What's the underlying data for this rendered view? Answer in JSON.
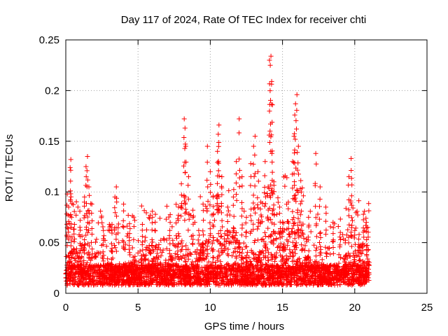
{
  "chart_data": {
    "type": "scatter",
    "title": "Day 117 of 2024, Rate Of TEC Index for receiver chti",
    "xlabel": "GPS time / hours",
    "ylabel": "ROTI / TECUs",
    "xlim": [
      0,
      25
    ],
    "ylim": [
      0,
      0.25
    ],
    "xticks": [
      0,
      5,
      10,
      15,
      20,
      25
    ],
    "xtick_labels": [
      "0",
      "5",
      "10",
      "15",
      "20",
      "25"
    ],
    "yticks": [
      0,
      0.05,
      0.1,
      0.15,
      0.2,
      0.25
    ],
    "ytick_labels": [
      "0",
      "0.05",
      "0.1",
      "0.15",
      "0.2",
      "0.25"
    ],
    "grid": true,
    "marker": "+",
    "color": "#ff0000",
    "data_extent_hours": [
      0,
      21
    ],
    "series": [
      {
        "name": "ROTI",
        "points": [
          [
            0.1,
            0.098
          ],
          [
            0.2,
            0.085
          ],
          [
            0.3,
            0.124
          ],
          [
            0.35,
            0.132
          ],
          [
            0.4,
            0.075
          ],
          [
            0.6,
            0.068
          ],
          [
            1.0,
            0.072
          ],
          [
            1.3,
            0.095
          ],
          [
            1.4,
            0.125
          ],
          [
            1.5,
            0.135
          ],
          [
            1.6,
            0.105
          ],
          [
            1.8,
            0.088
          ],
          [
            2.6,
            0.062
          ],
          [
            3.2,
            0.068
          ],
          [
            3.4,
            0.095
          ],
          [
            3.5,
            0.105
          ],
          [
            4.0,
            0.088
          ],
          [
            4.4,
            0.055
          ],
          [
            5.3,
            0.068
          ],
          [
            6.0,
            0.075
          ],
          [
            6.2,
            0.078
          ],
          [
            7.2,
            0.062
          ],
          [
            7.8,
            0.085
          ],
          [
            8.0,
            0.108
          ],
          [
            8.2,
            0.172
          ],
          [
            8.25,
            0.163
          ],
          [
            8.3,
            0.145
          ],
          [
            8.5,
            0.115
          ],
          [
            8.8,
            0.082
          ],
          [
            9.2,
            0.062
          ],
          [
            9.5,
            0.088
          ],
          [
            9.8,
            0.145
          ],
          [
            10.0,
            0.12
          ],
          [
            10.2,
            0.095
          ],
          [
            10.5,
            0.14
          ],
          [
            10.55,
            0.157
          ],
          [
            10.6,
            0.166
          ],
          [
            10.8,
            0.115
          ],
          [
            11.2,
            0.085
          ],
          [
            11.6,
            0.095
          ],
          [
            11.8,
            0.13
          ],
          [
            12.0,
            0.172
          ],
          [
            12.2,
            0.115
          ],
          [
            12.5,
            0.075
          ],
          [
            12.8,
            0.128
          ],
          [
            13.0,
            0.145
          ],
          [
            13.1,
            0.155
          ],
          [
            13.3,
            0.12
          ],
          [
            13.5,
            0.09
          ],
          [
            13.8,
            0.13
          ],
          [
            14.0,
            0.105
          ],
          [
            14.1,
            0.23
          ],
          [
            14.15,
            0.225
          ],
          [
            14.2,
            0.234
          ],
          [
            14.25,
            0.209
          ],
          [
            14.3,
            0.186
          ],
          [
            14.4,
            0.11
          ],
          [
            14.8,
            0.085
          ],
          [
            15.0,
            0.07
          ],
          [
            15.4,
            0.09
          ],
          [
            15.7,
            0.13
          ],
          [
            15.8,
            0.155
          ],
          [
            15.85,
            0.176
          ],
          [
            15.9,
            0.187
          ],
          [
            16.0,
            0.196
          ],
          [
            16.1,
            0.145
          ],
          [
            16.3,
            0.1
          ],
          [
            16.8,
            0.075
          ],
          [
            17.3,
            0.138
          ],
          [
            17.6,
            0.105
          ],
          [
            18.0,
            0.085
          ],
          [
            18.5,
            0.07
          ],
          [
            19.0,
            0.06
          ],
          [
            19.6,
            0.115
          ],
          [
            19.75,
            0.133
          ],
          [
            19.8,
            0.107
          ],
          [
            20.0,
            0.062
          ],
          [
            20.3,
            0.058
          ],
          [
            20.6,
            0.078
          ],
          [
            20.8,
            0.07
          ],
          [
            20.9,
            0.065
          ]
        ]
      }
    ]
  }
}
